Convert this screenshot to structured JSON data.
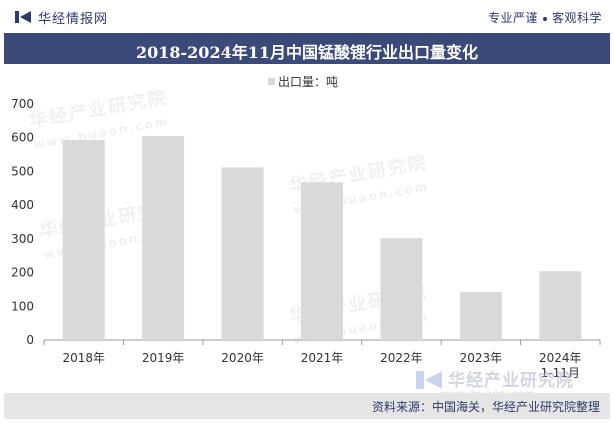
{
  "header": {
    "brand": "华经情报网",
    "slogan_left": "专业严谨",
    "slogan_right": "客观科学"
  },
  "title": "2018-2024年11月中国锰酸锂行业出口量变化",
  "footer": {
    "source": "资料来源：中国海关，华经产业研究院整理"
  },
  "watermark": {
    "text": "华经产业研究院",
    "url": "www.huaon.com"
  },
  "colors": {
    "bar": "#d9d9d9",
    "title_bg": "#3b4a78",
    "footer_bg": "#e6e6e6",
    "text_dark": "#2b3a67"
  },
  "chart_data": {
    "type": "bar",
    "categories": [
      "2018年",
      "2019年",
      "2020年",
      "2021年",
      "2022年",
      "2023年",
      "2024年\n1-11月"
    ],
    "series": [
      {
        "name": "出口量：吨",
        "values": [
          593,
          605,
          512,
          468,
          302,
          142,
          204
        ]
      }
    ],
    "ylim": [
      0,
      700
    ],
    "yticks": [
      0,
      100,
      200,
      300,
      400,
      500,
      600,
      700
    ],
    "legend": "top-center",
    "grid": false
  }
}
